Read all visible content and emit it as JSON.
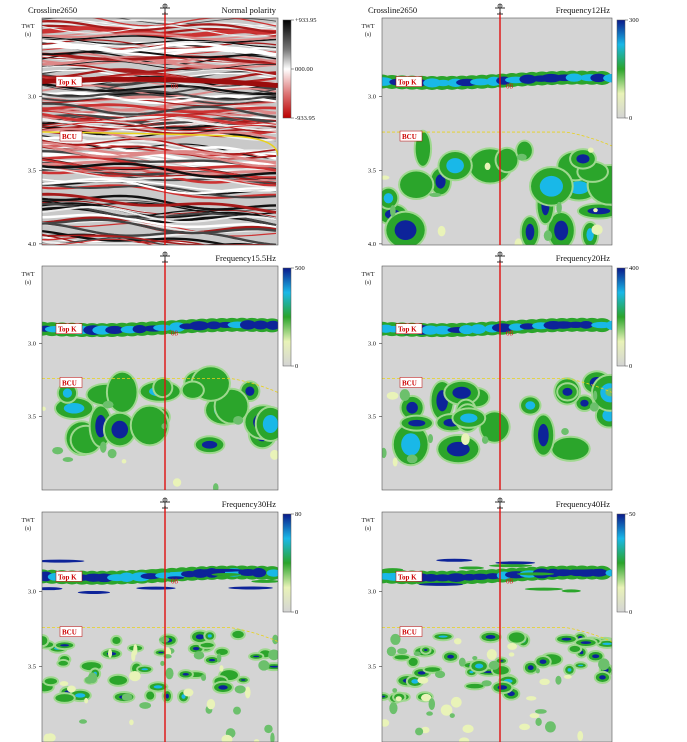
{
  "panels": [
    {
      "title_left": "Crossline2650",
      "title_right": "Normal polarity",
      "axis_label": "TWT",
      "axis_unit": "(s)",
      "ticks": [
        "3.0",
        "3.5",
        "4.0"
      ],
      "colorbar": [
        "+933.95",
        "000.00",
        "-933.95"
      ],
      "horizons": [
        "Top K",
        "BCU"
      ],
      "well": "08"
    },
    {
      "title_left": "Crossline2650",
      "title_right": "Frequency12Hz",
      "axis_label": "TWT",
      "axis_unit": "(s)",
      "ticks": [
        "3.0",
        "3.5",
        "4.0"
      ],
      "colorbar": [
        "300",
        "0"
      ],
      "horizons": [
        "Top K",
        "BCU"
      ],
      "well": "08"
    },
    {
      "title_right": "Frequency15.5Hz",
      "axis_label": "TWT",
      "axis_unit": "(s)",
      "ticks": [
        "3.0",
        "3.5"
      ],
      "colorbar": [
        "500",
        "0"
      ],
      "horizons": [
        "Top K",
        "BCU"
      ],
      "well": "08"
    },
    {
      "title_right": "Frequency20Hz",
      "axis_label": "TWT",
      "axis_unit": "(s)",
      "ticks": [
        "3.0",
        "3.5"
      ],
      "colorbar": [
        "400",
        "0"
      ],
      "horizons": [
        "Top K",
        "BCU"
      ],
      "well": "08"
    },
    {
      "title_right": "Frequency30Hz",
      "axis_label": "TWT",
      "axis_unit": "(s)",
      "ticks": [
        "3.0",
        "3.5"
      ],
      "colorbar": [
        "80",
        "0"
      ],
      "horizons": [
        "Top K",
        "BCU"
      ],
      "well": "08"
    },
    {
      "title_right": "Frequency40Hz",
      "axis_label": "TWT",
      "axis_unit": "(s)",
      "ticks": [
        "3.0",
        "3.5"
      ],
      "colorbar": [
        "50",
        "0"
      ],
      "horizons": [
        "Top K",
        "BCU"
      ],
      "well": "08"
    }
  ]
}
